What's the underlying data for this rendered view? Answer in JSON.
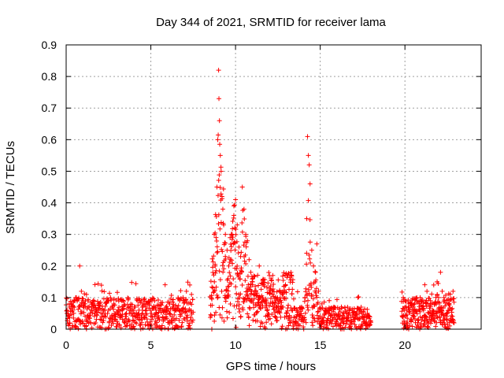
{
  "chart_data": {
    "type": "scatter",
    "title": "Day 344 of 2021, SRMTID for receiver lama",
    "xlabel": "GPS time / hours",
    "ylabel": "SRMTID / TECUs",
    "xlim": [
      0,
      24.5
    ],
    "ylim": [
      0,
      0.9
    ],
    "xticks": [
      0,
      5,
      10,
      15,
      20
    ],
    "yticks": [
      0,
      0.1,
      0.2,
      0.3,
      0.4,
      0.5,
      0.6,
      0.7,
      0.8,
      0.9
    ],
    "xtick_labels": [
      "0",
      "5",
      "10",
      "15",
      "20"
    ],
    "ytick_labels": [
      "0",
      "0.1",
      "0.2",
      "0.3",
      "0.4",
      "0.5",
      "0.6",
      "0.7",
      "0.8",
      "0.9"
    ],
    "grid": true,
    "marker": "+",
    "color": "#ff0000",
    "series": [
      {
        "name": "SRMTID",
        "x": [
          0.05,
          0.2,
          0.4,
          0.6,
          0.8,
          0.9,
          1.0,
          1.1,
          1.2,
          1.3,
          1.5,
          1.7,
          1.9,
          2.1,
          2.3,
          2.5,
          2.7,
          2.9,
          3.1,
          3.3,
          3.5,
          3.7,
          3.9,
          4.1,
          4.3,
          4.5,
          4.7,
          4.9,
          5.1,
          5.3,
          5.5,
          5.7,
          5.9,
          6.1,
          6.3,
          6.5,
          6.7,
          6.9,
          7.1,
          7.3,
          7.4,
          8.6,
          8.75,
          8.8,
          8.85,
          8.9,
          8.95,
          9.0,
          9.02,
          9.05,
          9.1,
          9.15,
          9.2,
          9.25,
          9.3,
          9.4,
          9.5,
          9.6,
          9.7,
          9.8,
          9.9,
          10.0,
          10.1,
          10.2,
          10.3,
          10.4,
          10.5,
          10.6,
          10.7,
          10.8,
          10.9,
          11.0,
          11.2,
          11.4,
          11.6,
          11.8,
          12.0,
          12.2,
          12.4,
          12.6,
          12.8,
          13.0,
          13.3,
          13.6,
          13.9,
          14.1,
          14.2,
          14.25,
          14.3,
          14.35,
          14.4,
          14.5,
          14.6,
          14.7,
          14.8,
          14.9,
          15.1,
          15.3,
          15.5,
          15.8,
          16.1,
          16.4,
          16.7,
          17.0,
          17.3,
          17.6,
          17.9,
          19.9,
          20.1,
          20.3,
          20.5,
          20.7,
          20.9,
          21.1,
          21.3,
          21.5,
          21.7,
          21.9,
          22.1,
          22.2,
          22.3,
          22.5,
          22.7,
          22.9
        ],
        "y": [
          0.05,
          0.07,
          0.06,
          0.1,
          0.2,
          0.12,
          0.09,
          0.08,
          0.11,
          0.07,
          0.06,
          0.05,
          0.08,
          0.04,
          0.05,
          0.06,
          0.03,
          0.04,
          0.05,
          0.06,
          0.04,
          0.03,
          0.05,
          0.04,
          0.06,
          0.05,
          0.07,
          0.08,
          0.04,
          0.05,
          0.03,
          0.06,
          0.04,
          0.05,
          0.07,
          0.06,
          0.09,
          0.1,
          0.12,
          0.14,
          0.11,
          0.0,
          0.15,
          0.2,
          0.29,
          0.45,
          0.6,
          0.82,
          0.73,
          0.66,
          0.55,
          0.5,
          0.42,
          0.38,
          0.33,
          0.3,
          0.25,
          0.2,
          0.22,
          0.3,
          0.36,
          0.41,
          0.33,
          0.26,
          0.23,
          0.45,
          0.38,
          0.3,
          0.28,
          0.22,
          0.18,
          0.15,
          0.12,
          0.2,
          0.1,
          0.08,
          0.13,
          0.17,
          0.09,
          0.12,
          0.07,
          0.05,
          0.06,
          0.04,
          0.07,
          0.1,
          0.35,
          0.61,
          0.55,
          0.52,
          0.46,
          0.25,
          0.2,
          0.15,
          0.27,
          0.12,
          0.08,
          0.06,
          0.05,
          0.07,
          0.04,
          0.05,
          0.06,
          0.04,
          0.05,
          0.03,
          0.04,
          0.1,
          0.06,
          0.08,
          0.07,
          0.09,
          0.1,
          0.06,
          0.12,
          0.08,
          0.14,
          0.15,
          0.18,
          0.12,
          0.1,
          0.05,
          0.03,
          0.02
        ]
      }
    ],
    "density_bands": [
      {
        "x_start": 0.0,
        "x_end": 7.5,
        "step": 0.015,
        "base_lo": 0.0,
        "base_hi": 0.1,
        "spike_chance": 0.06,
        "spike_max": 0.16
      },
      {
        "x_start": 8.5,
        "x_end": 13.4,
        "step": 0.012,
        "base_lo": 0.0,
        "base_hi": 0.18,
        "spike_chance": 0.0,
        "spike_max": 0.0
      },
      {
        "x_start": 13.4,
        "x_end": 18.0,
        "step": 0.015,
        "base_lo": 0.0,
        "base_hi": 0.07,
        "spike_chance": 0.05,
        "spike_max": 0.12
      },
      {
        "x_start": 19.8,
        "x_end": 22.9,
        "step": 0.012,
        "base_lo": 0.0,
        "base_hi": 0.1,
        "spike_chance": 0.08,
        "spike_max": 0.17
      }
    ],
    "peaks": [
      {
        "center": 9.05,
        "width": 0.35,
        "height": 0.58
      },
      {
        "center": 9.9,
        "width": 0.35,
        "height": 0.34
      },
      {
        "center": 10.45,
        "width": 0.3,
        "height": 0.3
      },
      {
        "center": 11.1,
        "width": 0.3,
        "height": 0.12
      },
      {
        "center": 12.5,
        "width": 0.25,
        "height": 0.06
      },
      {
        "center": 14.3,
        "width": 0.15,
        "height": 0.45
      },
      {
        "center": 14.7,
        "width": 0.15,
        "height": 0.18
      },
      {
        "center": 21.9,
        "width": 0.3,
        "height": 0.08
      }
    ]
  }
}
